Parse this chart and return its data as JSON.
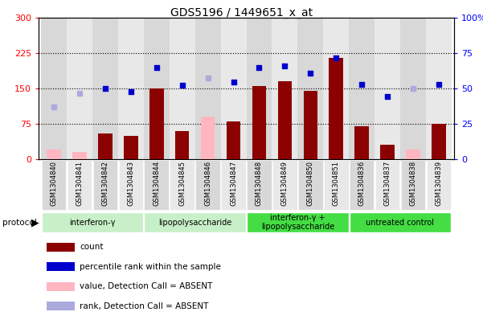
{
  "title": "GDS5196 / 1449651_x_at",
  "samples": [
    "GSM1304840",
    "GSM1304841",
    "GSM1304842",
    "GSM1304843",
    "GSM1304844",
    "GSM1304845",
    "GSM1304846",
    "GSM1304847",
    "GSM1304848",
    "GSM1304849",
    "GSM1304850",
    "GSM1304851",
    "GSM1304836",
    "GSM1304837",
    "GSM1304838",
    "GSM1304839"
  ],
  "groups": [
    {
      "label": "interferon-γ",
      "cols": [
        0,
        1,
        2,
        3
      ],
      "color": "#c8f0c8"
    },
    {
      "label": "lipopolysaccharide",
      "cols": [
        4,
        5,
        6,
        7
      ],
      "color": "#c8f0c8"
    },
    {
      "label": "interferon-γ +\nlipopolysaccharide",
      "cols": [
        8,
        9,
        10,
        11
      ],
      "color": "#44dd44"
    },
    {
      "label": "untreated control",
      "cols": [
        12,
        13,
        14,
        15
      ],
      "color": "#44dd44"
    }
  ],
  "count_values": [
    20,
    15,
    55,
    50,
    150,
    60,
    90,
    80,
    155,
    165,
    145,
    215,
    70,
    30,
    20,
    75
  ],
  "count_absent": [
    true,
    true,
    false,
    false,
    false,
    false,
    true,
    false,
    false,
    false,
    false,
    false,
    false,
    false,
    true,
    false
  ],
  "rank_values": [
    110,
    140,
    150,
    143,
    195,
    157,
    173,
    163,
    195,
    197,
    183,
    215,
    158,
    133,
    150,
    158
  ],
  "rank_absent": [
    true,
    true,
    false,
    false,
    false,
    false,
    true,
    false,
    false,
    false,
    false,
    false,
    false,
    false,
    true,
    false
  ],
  "yleft_max": 300,
  "yleft_ticks": [
    0,
    75,
    150,
    225,
    300
  ],
  "yright_ticks_vals": [
    0,
    25,
    50,
    75,
    100
  ],
  "bar_color_present": "#8B0000",
  "bar_color_absent": "#FFB6C1",
  "dot_color_present": "#0000CD",
  "dot_color_absent": "#AAAADD",
  "col_even_color": "#D8D8D8",
  "col_odd_color": "#E8E8E8",
  "label_row_color": "#C8C8C8",
  "legend_items": [
    {
      "label": "count",
      "color": "#8B0000"
    },
    {
      "label": "percentile rank within the sample",
      "color": "#0000CD"
    },
    {
      "label": "value, Detection Call = ABSENT",
      "color": "#FFB6C1"
    },
    {
      "label": "rank, Detection Call = ABSENT",
      "color": "#AAAADD"
    }
  ]
}
